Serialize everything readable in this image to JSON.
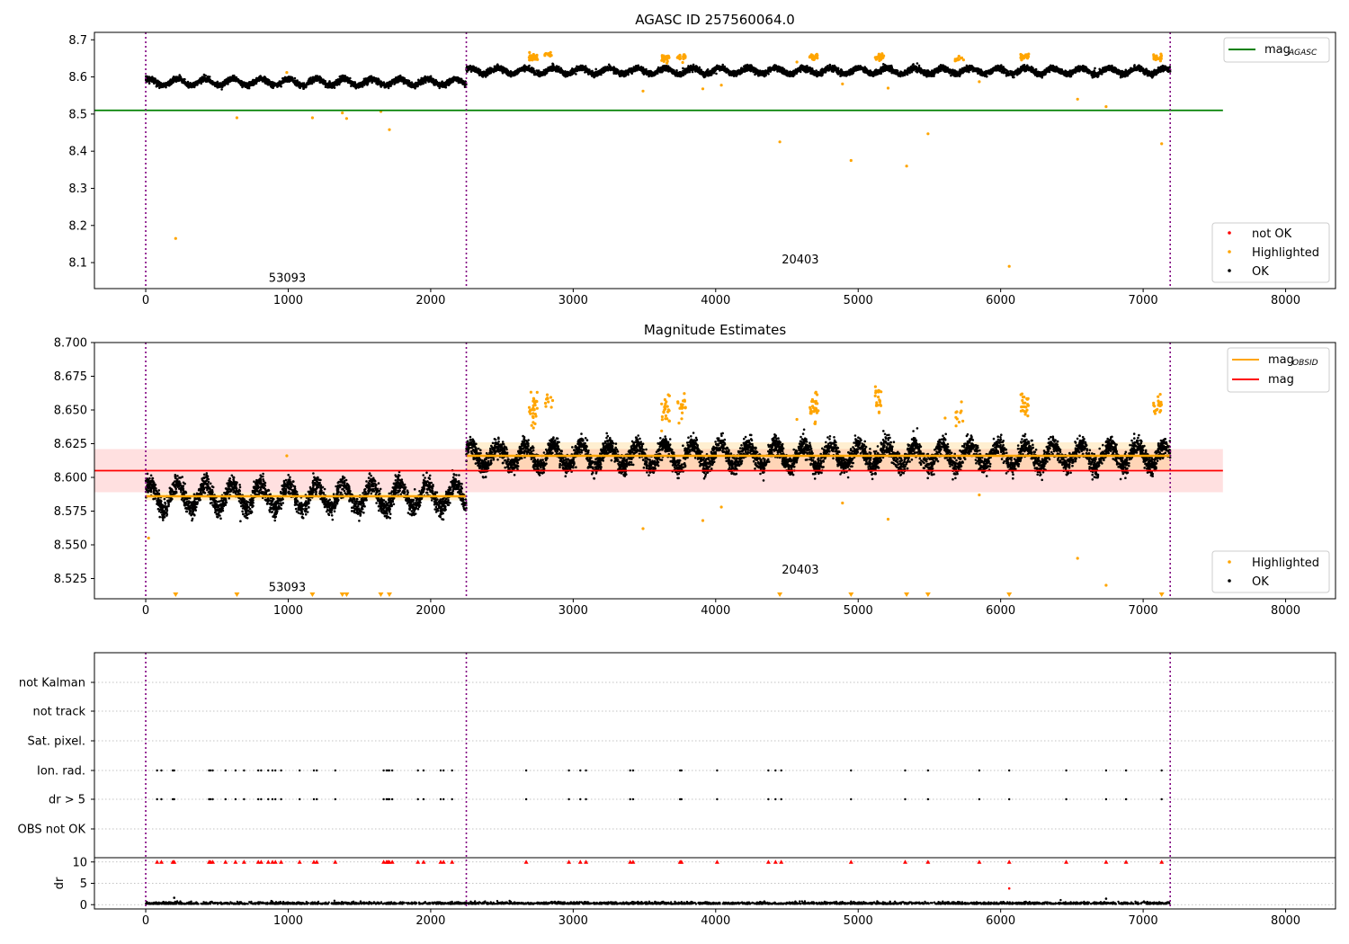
{
  "chart_data": [
    {
      "type": "scatter",
      "title": "AGASC ID 257560064.0",
      "xlim": [
        -360,
        8350
      ],
      "ylim": [
        8.03,
        8.72
      ],
      "xticks": [
        0,
        1000,
        2000,
        3000,
        4000,
        5000,
        6000,
        7000,
        8000
      ],
      "yticks": [
        8.1,
        8.2,
        8.3,
        8.4,
        8.5,
        8.6,
        8.7
      ],
      "ytick_labels": [
        "8.1",
        "8.2",
        "8.3",
        "8.4",
        "8.5",
        "8.6",
        "8.7"
      ],
      "obsid_boundaries": [
        0,
        2250,
        7190
      ],
      "obsid_labels": [
        {
          "text": "53093",
          "x": 1120,
          "y": 8.06
        },
        {
          "text": "20403",
          "x": 4720,
          "y": 8.11
        }
      ],
      "reference_line": {
        "name": "mag",
        "sub": "AGASC",
        "value": 8.51,
        "x": [
          -360,
          7560
        ],
        "color": "#008000"
      },
      "ok_series": {
        "name": "OK",
        "color": "#000000",
        "segments": [
          {
            "x": [
              0,
              2250
            ],
            "mean": 8.586,
            "sd": 0.008,
            "amp": 0.009,
            "period": 195
          },
          {
            "x": [
              2250,
              7190
            ],
            "mean": 8.616,
            "sd": 0.008,
            "amp": 0.008,
            "period": 195
          }
        ]
      },
      "highlighted": {
        "name": "Highlighted",
        "color": "#ffa500",
        "points": [
          [
            210,
            8.165
          ],
          [
            640,
            8.49
          ],
          [
            990,
            8.612
          ],
          [
            1170,
            8.49
          ],
          [
            1380,
            8.503
          ],
          [
            1410,
            8.488
          ],
          [
            1650,
            8.507
          ],
          [
            1710,
            8.458
          ],
          [
            3490,
            8.562
          ],
          [
            3910,
            8.568
          ],
          [
            4040,
            8.578
          ],
          [
            4450,
            8.425
          ],
          [
            4570,
            8.64
          ],
          [
            4890,
            8.581
          ],
          [
            4950,
            8.375
          ],
          [
            5210,
            8.57
          ],
          [
            5340,
            8.36
          ],
          [
            5490,
            8.447
          ],
          [
            5850,
            8.587
          ],
          [
            6060,
            8.09
          ],
          [
            6540,
            8.54
          ],
          [
            6740,
            8.52
          ],
          [
            7130,
            8.42
          ]
        ],
        "clusters": [
          [
            2720,
            30,
            8.651,
            0.006
          ],
          [
            2830,
            12,
            8.66,
            0.003
          ],
          [
            3650,
            25,
            8.651,
            0.005
          ],
          [
            3760,
            18,
            8.653,
            0.005
          ],
          [
            4690,
            28,
            8.653,
            0.004
          ],
          [
            5150,
            22,
            8.653,
            0.005
          ],
          [
            5710,
            10,
            8.648,
            0.004
          ],
          [
            6170,
            24,
            8.654,
            0.004
          ],
          [
            7100,
            22,
            8.652,
            0.004
          ]
        ]
      },
      "not_ok": {
        "name": "not OK",
        "color": "#ff0000",
        "points": []
      },
      "legend": {
        "lines": [
          {
            "label": "mag",
            "sub": "AGASC",
            "color": "#008000"
          }
        ],
        "markers": [
          {
            "label": "not OK",
            "color": "#ff0000"
          },
          {
            "label": "Highlighted",
            "color": "#ffa500"
          },
          {
            "label": "OK",
            "color": "#000000"
          }
        ]
      }
    },
    {
      "type": "scatter",
      "title": "Magnitude Estimates",
      "xlim": [
        -360,
        8350
      ],
      "ylim": [
        8.51,
        8.7
      ],
      "xticks": [
        0,
        1000,
        2000,
        3000,
        4000,
        5000,
        6000,
        7000,
        8000
      ],
      "yticks": [
        8.525,
        8.55,
        8.575,
        8.6,
        8.625,
        8.65,
        8.675,
        8.7
      ],
      "ytick_labels": [
        "8.525",
        "8.550",
        "8.575",
        "8.600",
        "8.625",
        "8.650",
        "8.675",
        "8.700"
      ],
      "obsid_boundaries": [
        0,
        2250,
        7190
      ],
      "obsid_labels": [
        {
          "text": "53093",
          "x": 1120,
          "y": 8.519
        },
        {
          "text": "20403",
          "x": 4720,
          "y": 8.532
        }
      ],
      "mag_line": {
        "name": "mag",
        "value": 8.605,
        "band": [
          8.589,
          8.621
        ],
        "x": [
          -360,
          7560
        ],
        "color": "#ff0000"
      },
      "obsid_lines": {
        "name": "mag",
        "sub": "OBSID",
        "color": "#ffa500",
        "segments": [
          {
            "x": [
              0,
              2250
            ],
            "value": 8.586,
            "band": [
              8.583,
              8.589
            ]
          },
          {
            "x": [
              2250,
              7190
            ],
            "value": 8.616,
            "band": [
              8.606,
              8.626
            ]
          }
        ]
      },
      "ok_series": {
        "name": "OK",
        "color": "#000000",
        "segments": [
          {
            "x": [
              0,
              2250
            ],
            "mean": 8.586,
            "sd": 0.008,
            "amp": 0.009,
            "period": 195
          },
          {
            "x": [
              2250,
              7190
            ],
            "mean": 8.616,
            "sd": 0.008,
            "amp": 0.008,
            "period": 195
          }
        ]
      },
      "highlighted": {
        "name": "Highlighted",
        "color": "#ffa500",
        "points": [
          [
            990,
            8.616
          ],
          [
            4570,
            8.643
          ],
          [
            4890,
            8.581
          ],
          [
            5210,
            8.569
          ],
          [
            5610,
            8.644
          ],
          [
            5850,
            8.587
          ],
          [
            6540,
            8.54
          ],
          [
            6740,
            8.52
          ],
          [
            3490,
            8.562
          ],
          [
            3910,
            8.568
          ],
          [
            4040,
            8.578
          ],
          [
            20,
            8.555
          ]
        ],
        "clusters": [
          [
            2720,
            30,
            8.651,
            0.006
          ],
          [
            2830,
            12,
            8.658,
            0.003
          ],
          [
            3650,
            25,
            8.65,
            0.006
          ],
          [
            3760,
            18,
            8.652,
            0.006
          ],
          [
            4690,
            28,
            8.652,
            0.005
          ],
          [
            5150,
            22,
            8.656,
            0.006
          ],
          [
            5710,
            10,
            8.648,
            0.005
          ],
          [
            6170,
            24,
            8.654,
            0.005
          ],
          [
            7100,
            22,
            8.652,
            0.004
          ]
        ],
        "below_axis_x": [
          210,
          640,
          1170,
          1380,
          1410,
          1650,
          1710,
          4450,
          4950,
          5340,
          5490,
          6060,
          7130
        ]
      },
      "legend": {
        "lines": [
          {
            "label": "mag",
            "sub": "OBSID",
            "color": "#ffa500"
          },
          {
            "label": "mag",
            "sub": "",
            "color": "#ff0000"
          }
        ],
        "markers": [
          {
            "label": "Highlighted",
            "color": "#ffa500"
          },
          {
            "label": "OK",
            "color": "#000000"
          }
        ]
      }
    },
    {
      "type": "scatter",
      "title": "",
      "xlim": [
        -360,
        8350
      ],
      "xticks": [
        0,
        1000,
        2000,
        3000,
        4000,
        5000,
        6000,
        7000,
        8000
      ],
      "obsid_boundaries": [
        0,
        2250,
        7190
      ],
      "flag_rows": [
        "not Kalman",
        "not track",
        "Sat. pixel.",
        "Ion. rad.",
        "dr > 5",
        "OBS not OK"
      ],
      "flag_points": {
        "Ion. rad.": [
          80,
          110,
          190,
          200,
          445,
          455,
          470,
          560,
          630,
          690,
          790,
          810,
          860,
          890,
          910,
          950,
          1080,
          1180,
          1200,
          1330,
          1670,
          1690,
          1700,
          1710,
          1730,
          1910,
          1950,
          2070,
          2090,
          2150,
          2670,
          2970,
          3050,
          3090,
          3400,
          3420,
          3750,
          3760,
          4010,
          4370,
          4420,
          4460,
          4950,
          5330,
          5490,
          5850,
          6060,
          6460,
          6740,
          6880,
          7130
        ],
        "dr > 5": [
          80,
          110,
          190,
          200,
          445,
          455,
          470,
          560,
          630,
          690,
          790,
          810,
          860,
          890,
          910,
          950,
          1080,
          1180,
          1200,
          1330,
          1670,
          1690,
          1700,
          1710,
          1730,
          1910,
          1950,
          2070,
          2090,
          2150,
          2670,
          2970,
          3050,
          3090,
          3400,
          3420,
          3750,
          3760,
          4010,
          4370,
          4420,
          4460,
          4950,
          5330,
          5490,
          5850,
          6060,
          6460,
          6740,
          6880,
          7130
        ]
      },
      "dr_panel": {
        "ylabel": "dr",
        "ylim": [
          -1,
          11
        ],
        "yticks": [
          0,
          5,
          10
        ],
        "ytick_labels": [
          "0",
          "5",
          "10"
        ],
        "capped_value": 10,
        "outliers": [
          [
            6060,
            3.8
          ],
          [
            200,
            1.6
          ],
          [
            6740,
            1.4
          ]
        ]
      }
    }
  ]
}
